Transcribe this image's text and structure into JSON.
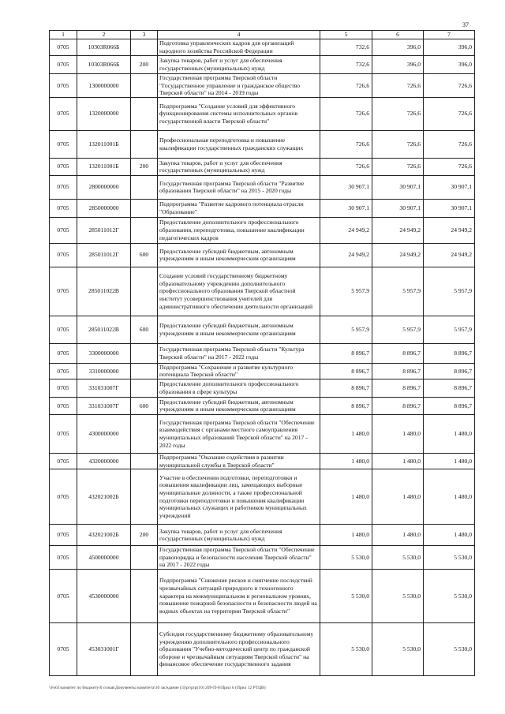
{
  "page_number": "37",
  "headers": [
    "1",
    "2",
    "3",
    "4",
    "5",
    "6",
    "7"
  ],
  "rows": [
    {
      "h": 21,
      "c": [
        "0705",
        "10303R066Б",
        "",
        "Подготовка управленческих кадров для организаций народного хозяйства Российской Федерации",
        "732,6",
        "396,0",
        "396,0"
      ]
    },
    {
      "h": 23,
      "c": [
        "0705",
        "10303R066Б",
        "200",
        "Закупка товаров, работ и услуг для обеспечения государственных (муниципальных) нужд",
        "732,6",
        "396,0",
        "396,0"
      ]
    },
    {
      "h": 28,
      "c": [
        "0705",
        "1300000000",
        "",
        "Государственная программа Тверской области \"Государственное управление и гражданское общество Тверской области\" на 2014 - 2019 годы",
        "726,6",
        "726,6",
        "726,6"
      ]
    },
    {
      "h": 42,
      "c": [
        "0705",
        "1320000000",
        "",
        "Подпрограмма \"Создание условий для эффективного функционирования системы исполнительных органов государственной власти Тверской области\"",
        "726,6",
        "726,6",
        "726,6"
      ]
    },
    {
      "h": 35,
      "c": [
        "0705",
        "132011001Б",
        "",
        "Профессиональная переподготовка и повышение квалификации государственных гражданских служащих",
        "726,6",
        "726,6",
        "726,6"
      ]
    },
    {
      "h": 22,
      "c": [
        "0705",
        "132011001Б",
        "200",
        "Закупка товаров, работ и услуг для обеспечения государственных (муниципальных) нужд",
        "726,6",
        "726,6",
        "726,6"
      ]
    },
    {
      "h": 30,
      "c": [
        "0705",
        "2800000000",
        "",
        "Государственная программа Тверской области \"Развитие образования Тверской области\" на 2015 - 2020 годы",
        "30 907,1",
        "30 907,1",
        "30 907,1"
      ]
    },
    {
      "h": 23,
      "c": [
        "0705",
        "2850000000",
        "",
        "Подпрограмма \"Развитие кадрового потенциала отрасли \"Образование\"",
        "30 907,1",
        "30 907,1",
        "30 907,1"
      ]
    },
    {
      "h": 33,
      "c": [
        "0705",
        "285011012Г",
        "",
        "Предоставление дополнительного профессионального образования, переподготовка, повышение квалификации педагогических кадров",
        "24 949,2",
        "24 949,2",
        "24 949,2"
      ]
    },
    {
      "h": 30,
      "c": [
        "0705",
        "285011012Г",
        "600",
        "Предоставление субсидий бюджетным, автономным учреждениям и иным некоммерческим организациям",
        "24 949,2",
        "24 949,2",
        "24 949,2"
      ]
    },
    {
      "h": 62,
      "c": [
        "0705",
        "285011022В",
        "",
        "Создание условий государственному бюджетному образовательному учреждению дополнительного профессионального образования Тверской областной институт усовершенствования учителей  для административного обеспечения деятельности организаций",
        "5 957,9",
        "5 957,9",
        "5 957,9"
      ]
    },
    {
      "h": 35,
      "c": [
        "0705",
        "285011022В",
        "600",
        "Предоставление субсидий бюджетным, автономным учреждениям и иным некоммерческим организациям",
        "5 957,9",
        "5 957,9",
        "5 957,9"
      ]
    },
    {
      "h": 25,
      "c": [
        "0705",
        "3300000000",
        "",
        "Государственная программа Тверской области \"Культура Тверской области\" на 2017 - 2022 годы",
        "8 896,7",
        "8 896,7",
        "8 896,7"
      ]
    },
    {
      "h": 19,
      "c": [
        "0705",
        "3310000000",
        "",
        "Подпрограмма \"Сохранение и развитие культурного потенциала Тверской области\"",
        "8 896,7",
        "8 896,7",
        "8 896,7"
      ]
    },
    {
      "h": 23,
      "c": [
        "0705",
        "331031007Г",
        "",
        "Предоставление дополнительного профессионального образования в сфере культуры",
        "8 896,7",
        "8 896,7",
        "8 896,7"
      ]
    },
    {
      "h": 22,
      "c": [
        "0705",
        "331031007Г",
        "600",
        "Предоставление субсидий бюджетным, автономным учреждениям и иным некоммерческим организациям",
        "8 896,7",
        "8 896,7",
        "8 896,7"
      ]
    },
    {
      "h": 49,
      "c": [
        "0705",
        "4300000000",
        "",
        "Государственная программа Тверской области \"Обеспечение взаимодействия с органами местного самоуправления муниципальных образований Тверской области\" на 2017 - 2022 годы",
        "1 480,0",
        "1 480,0",
        "1 480,0"
      ]
    },
    {
      "h": 19,
      "c": [
        "0705",
        "4320000000",
        "",
        "Подпрограмма \"Оказание содействия в развитии муниципальной службы в Тверской области\"",
        "1 480,0",
        "1 480,0",
        "1 480,0"
      ]
    },
    {
      "h": 70,
      "c": [
        "0705",
        "432021002Б",
        "",
        "Участие в обеспечении подготовки, переподготовки и повышения квалификации лиц, замещающих выборные муниципальные должности, а также профессиональной подготовки переподготовки и повышения квалификации муниципальных служащих и работников муниципальных учреждений",
        "1 480,0",
        "1 480,0",
        "1 480,0"
      ]
    },
    {
      "h": 27,
      "c": [
        "0705",
        "432021002Б",
        "200",
        "Закупка товаров, работ и услуг для обеспечения государственных (муниципальных) нужд",
        "1 480,0",
        "1 480,0",
        "1 480,0"
      ]
    },
    {
      "h": 26,
      "c": [
        "0705",
        "4500000000",
        "",
        "Государственная программа Тверской области \"Обеспечение правопорядка и безопасности населения Тверской области\" на 2017 - 2022 годы",
        "5 530,0",
        "5 530,0",
        "5 530,0"
      ]
    },
    {
      "h": 68,
      "c": [
        "0705",
        "4530000000",
        "",
        "Подпрограмма \"Снижение рисков и смягчение последствий чрезвычайных ситуаций природного и техногенного характера на межмуниципальном и региональном уровнях, повышение пожарной безопасности и безопасности людей на водных объектах на территории Тверской области\"",
        "5 530,0",
        "5 530,0",
        "5 530,0"
      ]
    },
    {
      "h": 67,
      "c": [
        "0705",
        "453031001Г",
        "",
        "Субсидия государственному бюджетному образовательному учреждению дополнительного профессионального образования \"Учебно-методический центр по гражданской обороне и чрезвычайным ситуациям Тверской области\" на финансовое обеспечение государственного задания",
        "5 530,0",
        "5 530,0",
        "5 530,0"
      ]
    }
  ],
  "footer": "\\\\Fs01\\комитет по бюджету\\6 созыв\\Документы комитета\\10 заседание (3)\\pr\\prp(10) 209-П-6\\Прил 6 (Прил 12 РТЦВ)"
}
